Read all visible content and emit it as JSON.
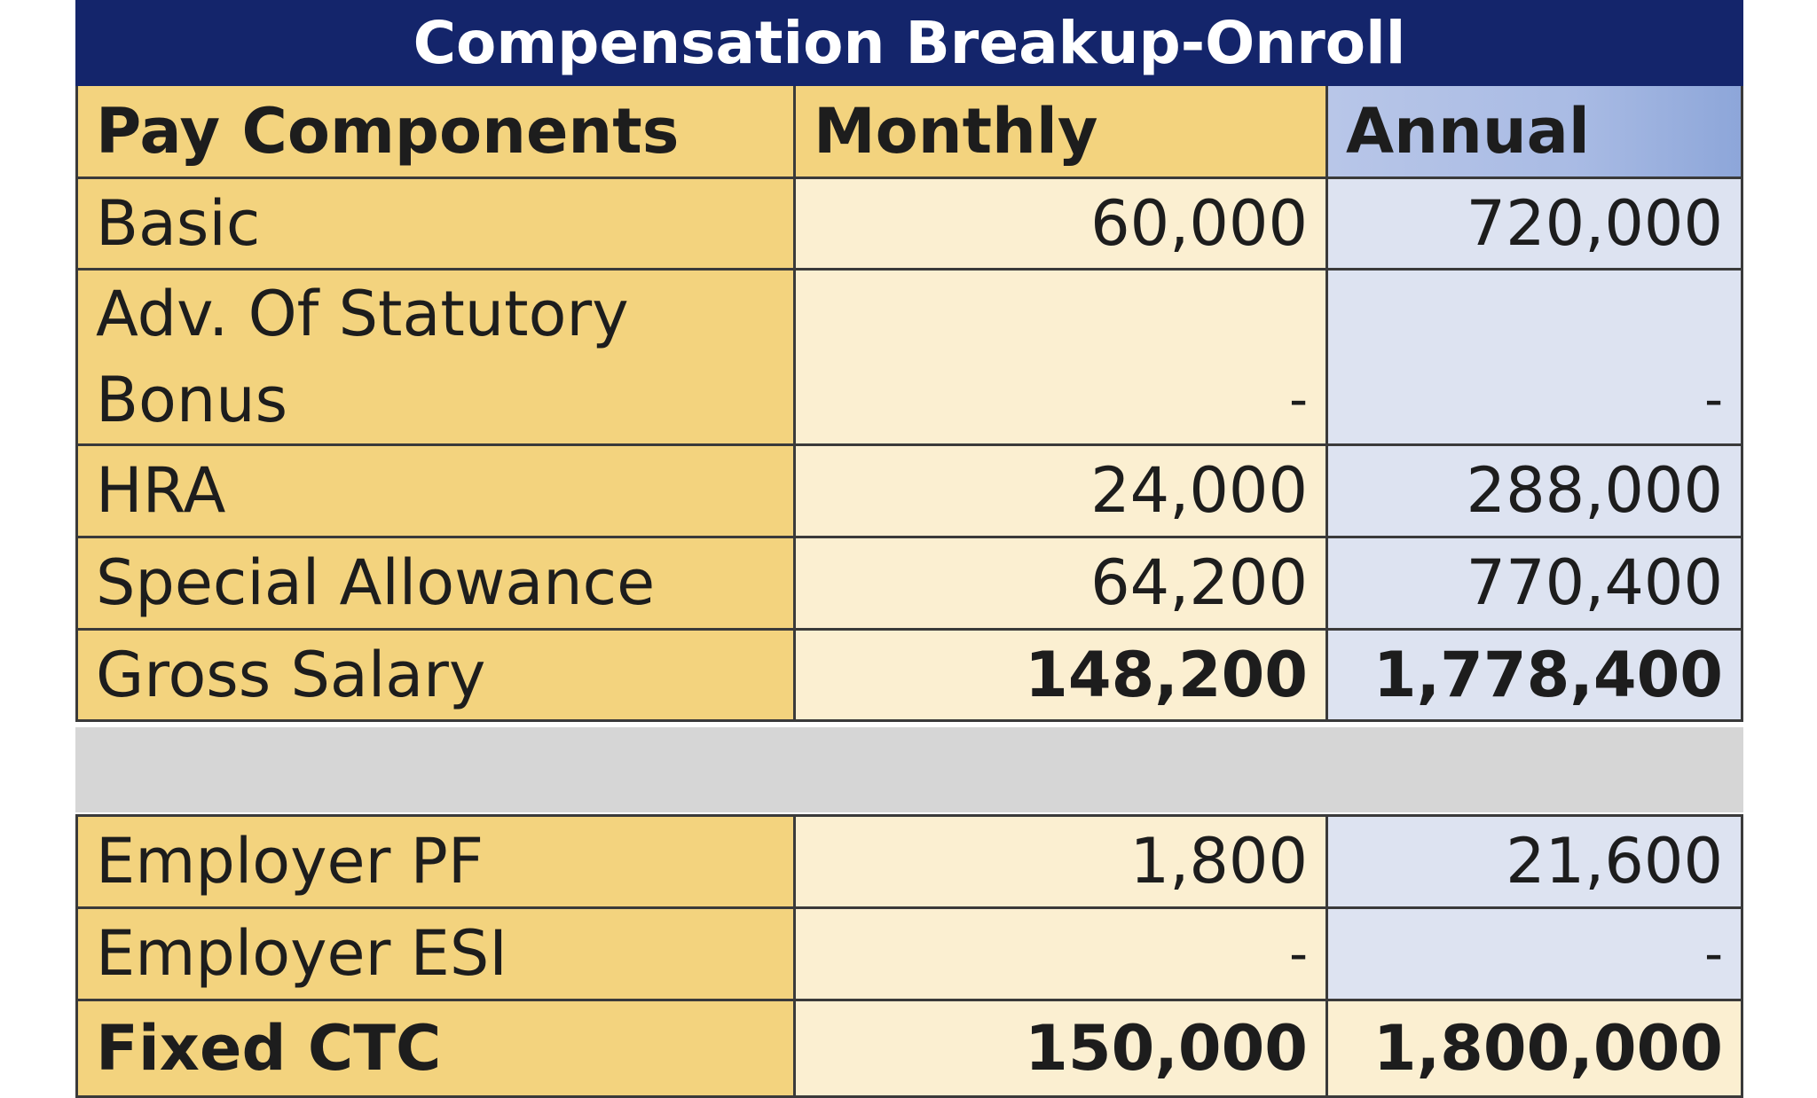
{
  "title": "Compensation Breakup-Onroll",
  "headers": {
    "component": "Pay Components",
    "monthly": "Monthly",
    "annual": "Annual"
  },
  "rows": [
    {
      "label": "Basic",
      "monthly": "60,000",
      "annual": "720,000"
    },
    {
      "label_line1": "Adv. Of Statutory",
      "label_line2": "Bonus",
      "monthly": "-",
      "annual": "-"
    },
    {
      "label": "HRA",
      "monthly": "24,000",
      "annual": "288,000"
    },
    {
      "label": "Special Allowance",
      "monthly": "64,200",
      "annual": "770,400"
    },
    {
      "label": "Gross Salary",
      "monthly": "148,200",
      "annual": "1,778,400"
    }
  ],
  "employer_rows": [
    {
      "label": "Employer PF",
      "monthly": "1,800",
      "annual": "21,600"
    },
    {
      "label": "Employer ESI",
      "monthly": "-",
      "annual": "-"
    },
    {
      "label": "Fixed CTC",
      "monthly": "150,000",
      "annual": "1,800,000"
    }
  ],
  "colors": {
    "title_bg": "#14256b",
    "label_bg": "#f3d37e",
    "monthly_bg": "#fbefd1",
    "annual_bg": "#dde3f1",
    "spacer_bg": "#d6d6d6"
  }
}
